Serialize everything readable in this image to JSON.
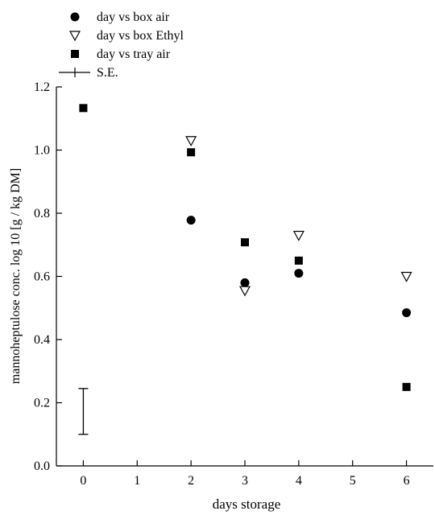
{
  "chart_data": {
    "type": "scatter",
    "xlabel": "days storage",
    "ylabel": "mannoheptulose conc. log 10 [g / kg DM]",
    "xlim": [
      -0.5,
      6.5
    ],
    "ylim": [
      0.0,
      1.2
    ],
    "xticks": [
      0,
      1,
      2,
      3,
      4,
      5,
      6
    ],
    "xtick_labels": [
      "0",
      "1",
      "2",
      "3",
      "4",
      "5",
      "6"
    ],
    "yticks": [
      0.0,
      0.2,
      0.4,
      0.6,
      0.8,
      1.0,
      1.2
    ],
    "ytick_labels": [
      "0.0",
      "0.2",
      "0.4",
      "0.6",
      "0.8",
      "1.0",
      "1.2"
    ],
    "grid": false,
    "legend_position": "top-left",
    "series": [
      {
        "name": "day vs box air",
        "marker": "circle",
        "color": "#000000",
        "x": [
          2,
          3,
          4,
          6
        ],
        "y": [
          0.778,
          0.58,
          0.61,
          0.485
        ]
      },
      {
        "name": "day vs box Ethyl",
        "marker": "triangle-down-open",
        "color": "#000000",
        "x": [
          2,
          3,
          4,
          6
        ],
        "y": [
          1.03,
          0.555,
          0.73,
          0.6
        ]
      },
      {
        "name": "day vs tray air",
        "marker": "square",
        "color": "#000000",
        "x": [
          0,
          2,
          3,
          4,
          6
        ],
        "y": [
          1.133,
          0.993,
          0.708,
          0.65,
          0.25
        ]
      }
    ],
    "error_bar": {
      "name": "S.E.",
      "x": 0,
      "y_low": 0.1,
      "y_high": 0.245
    }
  }
}
